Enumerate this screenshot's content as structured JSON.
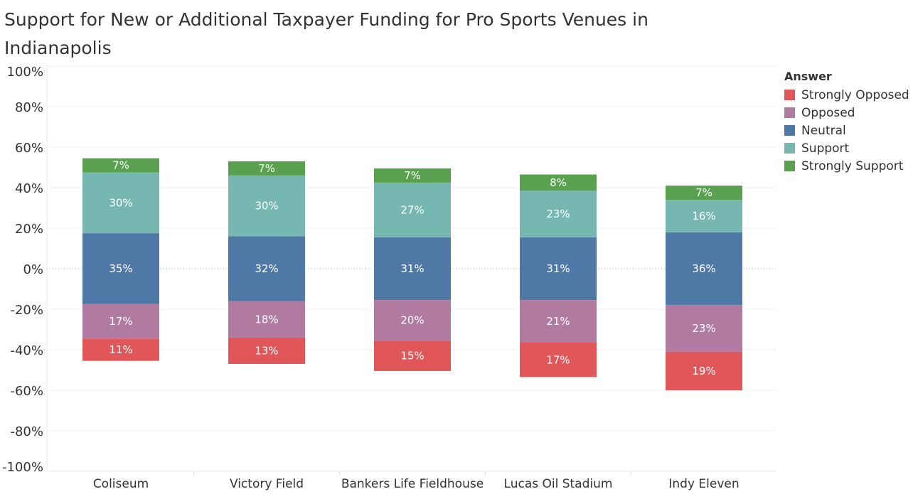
{
  "title": "Support for New or Additional Taxpayer Funding for Pro Sports Venues in Indianapolis",
  "chart_data": {
    "type": "bar",
    "stacked": "diverging",
    "title": "Support for New or Additional Taxpayer Funding for Pro Sports Venues in Indianapolis",
    "xlabel": "",
    "ylabel": "",
    "ylim": [
      -100,
      100
    ],
    "yticks": [
      "100%",
      "80%",
      "60%",
      "40%",
      "20%",
      "0%",
      "-20%",
      "-40%",
      "-60%",
      "-80%",
      "-100%"
    ],
    "ytick_values": [
      100,
      80,
      60,
      40,
      20,
      0,
      -20,
      -40,
      -60,
      -80,
      -100
    ],
    "categories": [
      "Coliseum",
      "Victory Field",
      "Bankers Life Fieldhouse",
      "Lucas Oil Stadium",
      "Indy Eleven"
    ],
    "legend_title": "Answer",
    "legend_position": "right",
    "series": [
      {
        "name": "Strongly Opposed",
        "color": "#e15759",
        "values": [
          11,
          13,
          15,
          17,
          19
        ]
      },
      {
        "name": "Opposed",
        "color": "#b07aa1",
        "values": [
          17,
          18,
          20,
          21,
          23
        ]
      },
      {
        "name": "Neutral",
        "color": "#4e79a7",
        "values": [
          35,
          32,
          31,
          31,
          36
        ]
      },
      {
        "name": "Support",
        "color": "#76b7b2",
        "values": [
          30,
          30,
          27,
          23,
          16
        ]
      },
      {
        "name": "Strongly Support",
        "color": "#59a14f",
        "values": [
          7,
          7,
          7,
          8,
          7
        ]
      }
    ]
  }
}
